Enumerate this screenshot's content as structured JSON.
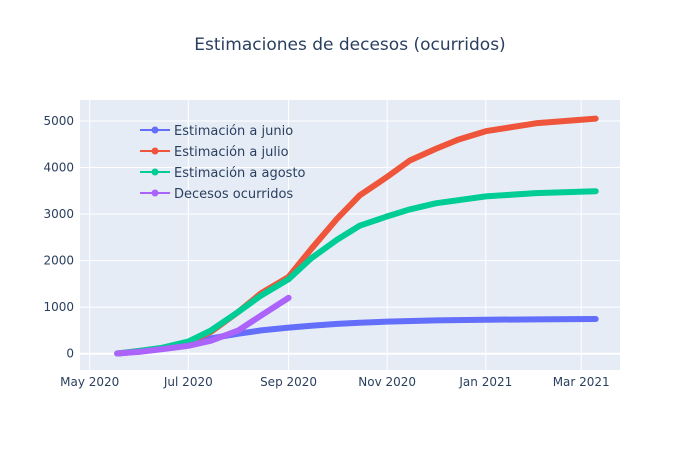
{
  "chart_data": {
    "type": "line",
    "title": "Estimaciones de decesos (ocurridos)",
    "xlabel": "",
    "ylabel": "",
    "x_axis": {
      "type": "date",
      "range": [
        "2020-04-25",
        "2021-03-25"
      ],
      "ticks": [
        {
          "date": "2020-05-01",
          "label": "May 2020"
        },
        {
          "date": "2020-07-01",
          "label": "Jul 2020"
        },
        {
          "date": "2020-09-01",
          "label": "Sep 2020"
        },
        {
          "date": "2020-11-01",
          "label": "Nov 2020"
        },
        {
          "date": "2021-01-01",
          "label": "Jan 2021"
        },
        {
          "date": "2021-03-01",
          "label": "Mar 2021"
        }
      ]
    },
    "y_axis": {
      "range": [
        -350,
        5450
      ],
      "ticks": [
        0,
        1000,
        2000,
        3000,
        4000,
        5000
      ]
    },
    "grid": true,
    "legend_position": "top-left",
    "plot_background": "#e5ecf6",
    "series": [
      {
        "name": "Estimación a junio",
        "color": "#636efa",
        "points": [
          [
            "2020-05-18",
            5
          ],
          [
            "2020-06-01",
            45
          ],
          [
            "2020-06-15",
            115
          ],
          [
            "2020-07-01",
            210
          ],
          [
            "2020-07-15",
            330
          ],
          [
            "2020-08-01",
            430
          ],
          [
            "2020-08-15",
            500
          ],
          [
            "2020-09-01",
            560
          ],
          [
            "2020-09-15",
            600
          ],
          [
            "2020-10-01",
            640
          ],
          [
            "2020-10-15",
            665
          ],
          [
            "2020-11-01",
            690
          ],
          [
            "2020-12-01",
            715
          ],
          [
            "2021-01-01",
            730
          ],
          [
            "2021-02-01",
            738
          ],
          [
            "2021-03-10",
            745
          ]
        ]
      },
      {
        "name": "Estimación a julio",
        "color": "#ef553b",
        "points": [
          [
            "2020-05-18",
            5
          ],
          [
            "2020-06-01",
            60
          ],
          [
            "2020-06-15",
            120
          ],
          [
            "2020-07-01",
            250
          ],
          [
            "2020-07-15",
            470
          ],
          [
            "2020-08-01",
            900
          ],
          [
            "2020-08-15",
            1300
          ],
          [
            "2020-09-01",
            1650
          ],
          [
            "2020-09-15",
            2250
          ],
          [
            "2020-10-01",
            2900
          ],
          [
            "2020-10-15",
            3400
          ],
          [
            "2020-11-01",
            3800
          ],
          [
            "2020-11-15",
            4150
          ],
          [
            "2020-12-01",
            4400
          ],
          [
            "2020-12-15",
            4600
          ],
          [
            "2021-01-01",
            4780
          ],
          [
            "2021-02-01",
            4950
          ],
          [
            "2021-03-10",
            5050
          ]
        ]
      },
      {
        "name": "Estimación a agosto",
        "color": "#00cc96",
        "points": [
          [
            "2020-05-18",
            5
          ],
          [
            "2020-06-01",
            60
          ],
          [
            "2020-06-15",
            130
          ],
          [
            "2020-07-01",
            260
          ],
          [
            "2020-07-15",
            500
          ],
          [
            "2020-08-01",
            900
          ],
          [
            "2020-08-15",
            1250
          ],
          [
            "2020-09-01",
            1600
          ],
          [
            "2020-09-15",
            2050
          ],
          [
            "2020-10-01",
            2450
          ],
          [
            "2020-10-15",
            2750
          ],
          [
            "2020-11-01",
            2950
          ],
          [
            "2020-11-15",
            3100
          ],
          [
            "2020-12-01",
            3230
          ],
          [
            "2021-01-01",
            3380
          ],
          [
            "2021-02-01",
            3450
          ],
          [
            "2021-03-10",
            3490
          ]
        ]
      },
      {
        "name": "Decesos ocurridos",
        "color": "#ab63fa",
        "points": [
          [
            "2020-05-18",
            5
          ],
          [
            "2020-06-01",
            40
          ],
          [
            "2020-06-15",
            100
          ],
          [
            "2020-07-01",
            170
          ],
          [
            "2020-07-15",
            280
          ],
          [
            "2020-08-01",
            500
          ],
          [
            "2020-08-15",
            820
          ],
          [
            "2020-09-01",
            1200
          ]
        ]
      }
    ]
  }
}
